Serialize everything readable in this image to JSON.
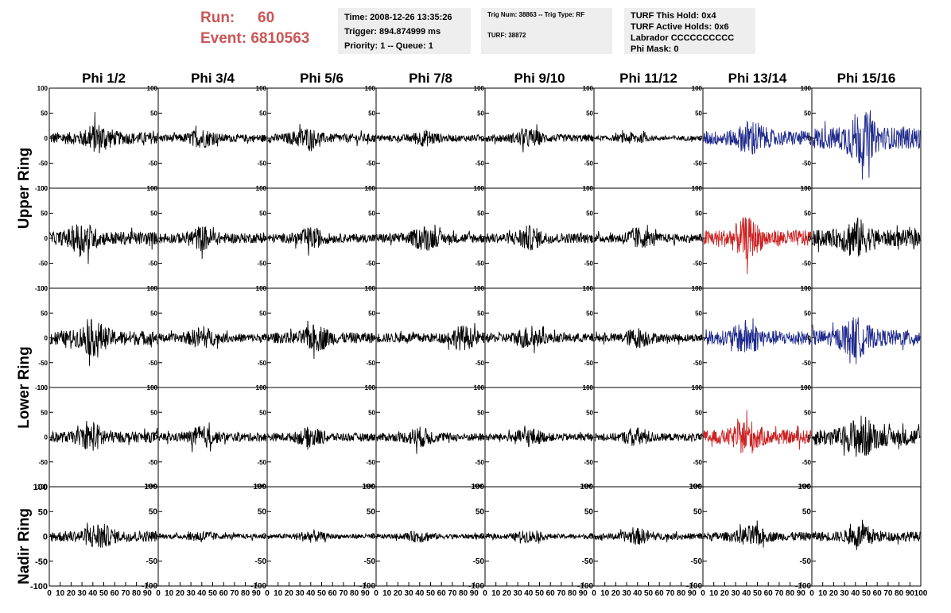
{
  "header": {
    "run_label": "Run:",
    "run_value": "60",
    "event_label": "Event:",
    "event_value": "6810563"
  },
  "info": {
    "time": "Time: 2008-12-26 13:35:26",
    "trigger": "Trigger: 894.874999 ms",
    "priority": "Priority: 1 -- Queue: 1",
    "trig_num": "Trig Num: 38863 -- Trig Type: RF",
    "turf_num": "TURF: 38872",
    "turf_hold": "TURF This Hold: 0x4",
    "turf_active": "TURF Active Holds: 0x6",
    "labrador": "Labrador CCCCCCCCCC",
    "phi_mask": "Phi Mask: 0"
  },
  "colors": {
    "normal": "#000000",
    "blue": "#1f2a8c",
    "red": "#cc2222",
    "header_red": "#cc5555"
  },
  "chart_data": {
    "type": "line",
    "phi_labels": [
      "Phi 1/2",
      "Phi 3/4",
      "Phi 5/6",
      "Phi 7/8",
      "Phi 9/10",
      "Phi 11/12",
      "Phi 13/14",
      "Phi 15/16"
    ],
    "ring_labels": [
      "Upper Ring",
      "Lower Ring",
      "Nadir Ring"
    ],
    "xlim": [
      0,
      100
    ],
    "ylim": [
      -100,
      100
    ],
    "x_ticks": [
      "0",
      "10",
      "20",
      "30",
      "40",
      "50",
      "60",
      "70",
      "80",
      "90",
      "100"
    ],
    "y_ticks_small": [
      "100",
      "50",
      "0",
      "-50",
      "-100"
    ],
    "y_ticks_nadir": [
      "100",
      "50",
      "0",
      "-50",
      "-100"
    ],
    "samples_per_trace": 260,
    "rows": [
      {
        "ring": "Upper Ring",
        "amplitudes": [
          22,
          14,
          16,
          12,
          14,
          9,
          27,
          40
        ],
        "peak_x": [
          45,
          40,
          35,
          45,
          40,
          35,
          45,
          45
        ],
        "colors": [
          "normal",
          "normal",
          "normal",
          "normal",
          "normal",
          "normal",
          "blue",
          "blue"
        ]
      },
      {
        "ring": "Upper Ring",
        "amplitudes": [
          24,
          18,
          16,
          18,
          18,
          16,
          30,
          30
        ],
        "peak_x": [
          30,
          40,
          40,
          45,
          40,
          40,
          40,
          40
        ],
        "colors": [
          "normal",
          "normal",
          "normal",
          "normal",
          "normal",
          "normal",
          "red",
          "normal"
        ]
      },
      {
        "ring": "Lower Ring",
        "amplitudes": [
          26,
          16,
          20,
          18,
          17,
          15,
          26,
          30
        ],
        "peak_x": [
          40,
          40,
          45,
          80,
          40,
          40,
          40,
          40
        ],
        "colors": [
          "normal",
          "normal",
          "normal",
          "normal",
          "normal",
          "normal",
          "blue",
          "blue"
        ]
      },
      {
        "ring": "Lower Ring",
        "amplitudes": [
          20,
          16,
          15,
          15,
          14,
          14,
          26,
          32
        ],
        "peak_x": [
          40,
          40,
          40,
          40,
          40,
          40,
          40,
          45
        ],
        "colors": [
          "normal",
          "normal",
          "normal",
          "normal",
          "normal",
          "normal",
          "red",
          "normal"
        ]
      },
      {
        "ring": "Nadir Ring",
        "amplitudes": [
          20,
          9,
          9,
          9,
          9,
          12,
          16,
          18
        ],
        "peak_x": [
          45,
          40,
          40,
          40,
          40,
          40,
          45,
          45
        ],
        "colors": [
          "normal",
          "normal",
          "normal",
          "normal",
          "normal",
          "normal",
          "normal",
          "normal"
        ]
      }
    ]
  }
}
